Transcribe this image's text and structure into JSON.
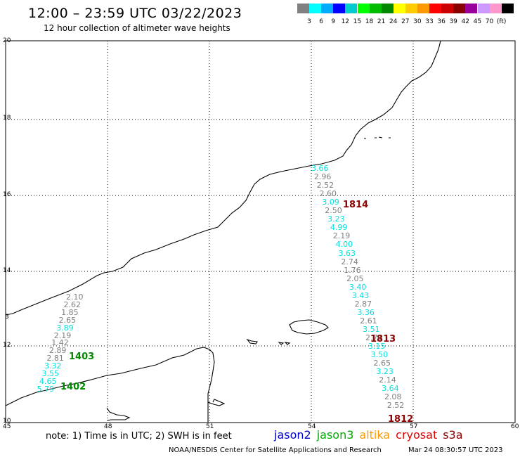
{
  "header": {
    "title": "12:00 – 23:59 UTC 03/22/2023",
    "subtitle": "12 hour collection of altimeter wave heights"
  },
  "colorbar": {
    "colors": [
      "#808080",
      "#00ffff",
      "#00aaff",
      "#0000ff",
      "#00cccc",
      "#00ff00",
      "#00bb00",
      "#008800",
      "#ffff00",
      "#ffcc00",
      "#ff9900",
      "#ff0000",
      "#cc0000",
      "#880000",
      "#990099",
      "#cc99ff",
      "#ff99cc",
      "#000000"
    ],
    "labels": [
      "3",
      "6",
      "9",
      "12",
      "15",
      "18",
      "21",
      "24",
      "27",
      "30",
      "33",
      "36",
      "39",
      "42",
      "45",
      "70",
      "(ft)"
    ]
  },
  "axes": {
    "lat_labels": [
      "20",
      "18",
      "16",
      "14",
      "12",
      "10"
    ],
    "lat_side_label": "3",
    "lon_labels": [
      "45",
      "48",
      "51",
      "54",
      "57",
      "60"
    ]
  },
  "tracks": {
    "west": [
      {
        "v": "2.10",
        "c": "#808080"
      },
      {
        "v": "2.62",
        "c": "#808080"
      },
      {
        "v": "1.85",
        "c": "#808080"
      },
      {
        "v": "2.65",
        "c": "#808080"
      },
      {
        "v": "3.89",
        "c": "#00e0e0"
      },
      {
        "v": "2.19",
        "c": "#808080"
      },
      {
        "v": "1.42",
        "c": "#808080"
      },
      {
        "v": "2.89",
        "c": "#808080"
      },
      {
        "v": "2.81",
        "c": "#808080"
      },
      {
        "v": "3.32",
        "c": "#00e0e0"
      },
      {
        "v": "3.55",
        "c": "#00e0e0"
      },
      {
        "v": "4.65",
        "c": "#00e0e0"
      },
      {
        "v": "5.79",
        "c": "#00e0e0"
      }
    ],
    "east": [
      {
        "v": "3.66",
        "c": "#00e0e0"
      },
      {
        "v": "2.96",
        "c": "#808080"
      },
      {
        "v": "2.52",
        "c": "#808080"
      },
      {
        "v": "2.60",
        "c": "#808080"
      },
      {
        "v": "3.09",
        "c": "#00e0e0"
      },
      {
        "v": "2.50",
        "c": "#808080"
      },
      {
        "v": "3.23",
        "c": "#00e0e0"
      },
      {
        "v": "4.99",
        "c": "#00e0e0"
      },
      {
        "v": "2.19",
        "c": "#808080"
      },
      {
        "v": "4.00",
        "c": "#00e0e0"
      },
      {
        "v": "3.63",
        "c": "#00e0e0"
      },
      {
        "v": "2.74",
        "c": "#808080"
      },
      {
        "v": "1.76",
        "c": "#808080"
      },
      {
        "v": "2.05",
        "c": "#808080"
      },
      {
        "v": "3.40",
        "c": "#00e0e0"
      },
      {
        "v": "3.43",
        "c": "#00e0e0"
      },
      {
        "v": "2.87",
        "c": "#808080"
      },
      {
        "v": "3.36",
        "c": "#00e0e0"
      },
      {
        "v": "2.61",
        "c": "#808080"
      },
      {
        "v": "3.51",
        "c": "#00e0e0"
      },
      {
        "v": "2.71",
        "c": "#808080"
      },
      {
        "v": "3.15",
        "c": "#00e0e0"
      },
      {
        "v": "3.50",
        "c": "#00e0e0"
      },
      {
        "v": "2.65",
        "c": "#808080"
      },
      {
        "v": "3.23",
        "c": "#00e0e0"
      },
      {
        "v": "2.14",
        "c": "#808080"
      },
      {
        "v": "3.64",
        "c": "#00e0e0"
      },
      {
        "v": "2.08",
        "c": "#808080"
      },
      {
        "v": "2.52",
        "c": "#808080"
      }
    ]
  },
  "time_labels": [
    {
      "text": "1814",
      "color": "#8b0000"
    },
    {
      "text": "1813",
      "color": "#8b0000"
    },
    {
      "text": "1812",
      "color": "#8b0000"
    },
    {
      "text": "1403",
      "color": "#008800"
    },
    {
      "text": "1402",
      "color": "#008800"
    }
  ],
  "footer": {
    "note": "note:  1) Time is in UTC;  2) SWH is in feet",
    "satellites": [
      {
        "name": "jason2",
        "color": "#0000cc"
      },
      {
        "name": "jason3",
        "color": "#00aa00"
      },
      {
        "name": "altika",
        "color": "#ff9900"
      },
      {
        "name": "cryosat",
        "color": "#dd0000"
      },
      {
        "name": "s3a",
        "color": "#880000"
      }
    ],
    "credit": "NOAA/NESDIS Center for Satellite Applications and Research",
    "timestamp": "Mar 24 08:30:57 UTC 2023"
  }
}
